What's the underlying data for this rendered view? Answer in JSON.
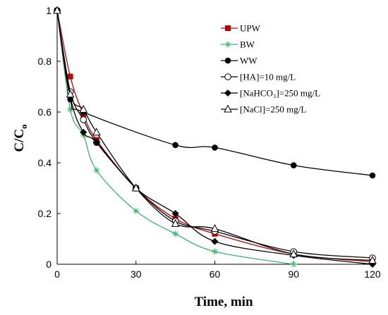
{
  "chart_data": {
    "type": "line",
    "title": "",
    "xlabel": "Time, min",
    "ylabel": "C/C",
    "ylabel_sub": "o",
    "xlim": [
      0,
      120
    ],
    "ylim": [
      0,
      1
    ],
    "x_ticks": [
      0,
      30,
      60,
      90,
      120
    ],
    "y_ticks": [
      0,
      0.2,
      0.4,
      0.6,
      0.8,
      1
    ],
    "x_tick_labels": [
      "0",
      "30",
      "60",
      "90",
      "120"
    ],
    "y_tick_labels": [
      "0",
      "0.2",
      "0.4",
      "0.6",
      "0.8",
      "1"
    ],
    "grid": false,
    "legend_position": "top-right-inside",
    "series": [
      {
        "name": "UPW",
        "legend_label": "UPW",
        "color": "#c00000",
        "marker": "square-filled",
        "x": [
          0,
          5,
          10,
          15,
          30,
          45,
          60,
          90,
          120
        ],
        "y": [
          1,
          0.74,
          0.59,
          0.49,
          0.3,
          0.18,
          0.12,
          0.04,
          0.01
        ]
      },
      {
        "name": "BW",
        "legend_label": "BW",
        "color": "#3cb371",
        "marker": "asterisk",
        "x": [
          0,
          5,
          10,
          15,
          30,
          45,
          60,
          90
        ],
        "y": [
          1,
          0.61,
          0.51,
          0.37,
          0.21,
          0.12,
          0.05,
          0.0
        ]
      },
      {
        "name": "WW",
        "legend_label": "WW",
        "color": "#000000",
        "marker": "circle-filled",
        "x": [
          0,
          5,
          10,
          45,
          60,
          90,
          120
        ],
        "y": [
          1,
          0.65,
          0.6,
          0.47,
          0.46,
          0.39,
          0.35
        ]
      },
      {
        "name": "[HA]=10 mg/L",
        "legend_label": "[HA]=10  mg/L",
        "color": "#000000",
        "marker": "circle-open",
        "x": [
          0,
          5,
          10,
          15,
          30,
          45,
          60,
          90,
          120
        ],
        "y": [
          1,
          0.68,
          0.57,
          0.48,
          0.3,
          0.17,
          0.13,
          0.05,
          0.025
        ]
      },
      {
        "name": "[NaHCO3]=250 mg/L",
        "legend_label": "[NaHCO₃]=250 mg/L",
        "color": "#000000",
        "marker": "diamond-filled",
        "x": [
          0,
          5,
          10,
          15,
          30,
          45,
          60,
          90,
          120
        ],
        "y": [
          1,
          0.66,
          0.52,
          0.48,
          0.3,
          0.2,
          0.09,
          0.035,
          0.0
        ]
      },
      {
        "name": "[NaCl]=250 mg/L",
        "legend_label": "[NaCl]=250 mg/L",
        "color": "#000000",
        "marker": "triangle-open",
        "x": [
          0,
          5,
          10,
          15,
          30,
          45,
          60,
          90,
          120
        ],
        "y": [
          1,
          0.67,
          0.61,
          0.52,
          0.3,
          0.16,
          0.14,
          0.04,
          0.015
        ]
      }
    ]
  }
}
